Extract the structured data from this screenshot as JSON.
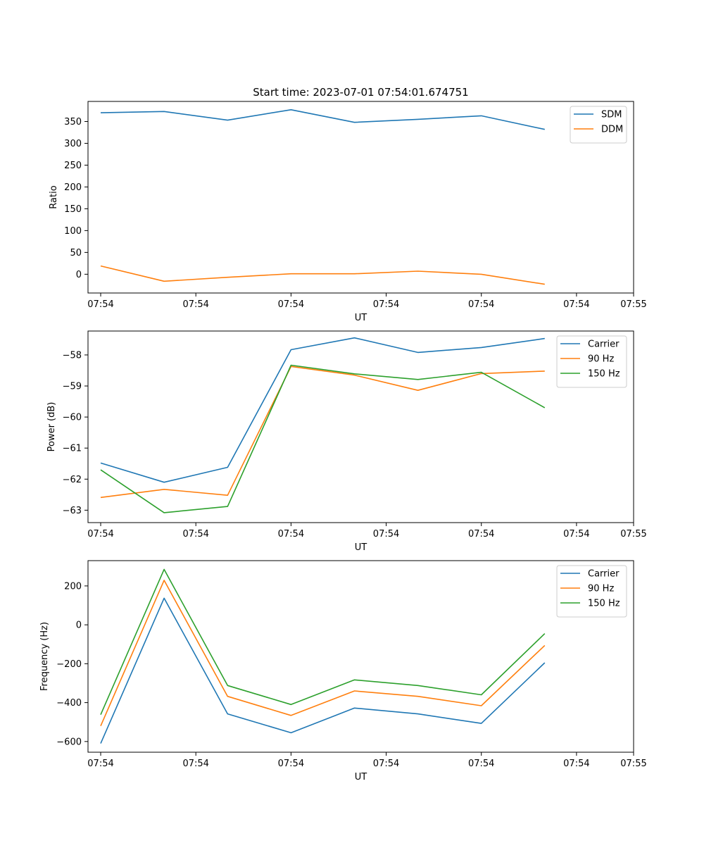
{
  "chart_data": [
    {
      "type": "line",
      "title": "Start time: 2023-07-01 07:54:01.674751",
      "xlabel": "UT",
      "ylabel": "Ratio",
      "x": [
        1,
        2,
        3,
        4,
        5,
        6,
        7,
        8
      ],
      "xlim": [
        0.8,
        9.4
      ],
      "x_ticks": [
        1,
        2.5,
        4,
        5.5,
        7,
        8.5,
        9.4
      ],
      "x_tick_labels": [
        "07:54",
        "07:54",
        "07:54",
        "07:54",
        "07:54",
        "07:54",
        "07:55"
      ],
      "ylim": [
        -43,
        396
      ],
      "y_ticks": [
        0,
        50,
        100,
        150,
        200,
        250,
        300,
        350
      ],
      "legend_position": "top-right",
      "series": [
        {
          "name": "SDM",
          "color": "#1f77b4",
          "values": [
            370,
            373,
            353,
            377,
            348,
            355,
            363,
            332
          ]
        },
        {
          "name": "DDM",
          "color": "#ff7f0e",
          "values": [
            19,
            -16,
            -7,
            1,
            1,
            7,
            0,
            -23
          ]
        }
      ]
    },
    {
      "type": "line",
      "title": "",
      "xlabel": "UT",
      "ylabel": "Power (dB)",
      "x": [
        1,
        2,
        3,
        4,
        5,
        6,
        7,
        8
      ],
      "xlim": [
        0.8,
        9.4
      ],
      "x_ticks": [
        1,
        2.5,
        4,
        5.5,
        7,
        8.5,
        9.4
      ],
      "x_tick_labels": [
        "07:54",
        "07:54",
        "07:54",
        "07:54",
        "07:54",
        "07:54",
        "07:55"
      ],
      "ylim": [
        -63.4,
        -57.23
      ],
      "y_ticks": [
        -63,
        -62,
        -61,
        -60,
        -59,
        -58
      ],
      "legend_position": "top-right",
      "series": [
        {
          "name": "Carrier",
          "color": "#1f77b4",
          "values": [
            -61.48,
            -62.1,
            -61.62,
            -57.83,
            -57.45,
            -57.92,
            -57.76,
            -57.47
          ]
        },
        {
          "name": "90 Hz",
          "color": "#ff7f0e",
          "values": [
            -62.59,
            -62.33,
            -62.52,
            -58.37,
            -58.65,
            -59.14,
            -58.6,
            -58.52
          ]
        },
        {
          "name": "150 Hz",
          "color": "#2ca02c",
          "values": [
            -61.7,
            -63.08,
            -62.88,
            -58.33,
            -58.61,
            -58.79,
            -58.56,
            -59.7
          ]
        }
      ]
    },
    {
      "type": "line",
      "title": "",
      "xlabel": "UT",
      "ylabel": "Frequency (Hz)",
      "x": [
        1,
        2,
        3,
        4,
        5,
        6,
        7,
        8
      ],
      "xlim": [
        0.8,
        9.4
      ],
      "x_ticks": [
        1,
        2.5,
        4,
        5.5,
        7,
        8.5,
        9.4
      ],
      "x_tick_labels": [
        "07:54",
        "07:54",
        "07:54",
        "07:54",
        "07:54",
        "07:54",
        "07:55"
      ],
      "ylim": [
        -655,
        330
      ],
      "y_ticks": [
        -600,
        -400,
        -200,
        0,
        200
      ],
      "legend_position": "top-right",
      "series": [
        {
          "name": "Carrier",
          "color": "#1f77b4",
          "values": [
            -610,
            137,
            -458,
            -555,
            -428,
            -458,
            -507,
            -195
          ]
        },
        {
          "name": "90 Hz",
          "color": "#ff7f0e",
          "values": [
            -520,
            229,
            -368,
            -466,
            -340,
            -368,
            -416,
            -106
          ]
        },
        {
          "name": "150 Hz",
          "color": "#2ca02c",
          "values": [
            -462,
            285,
            -312,
            -410,
            -283,
            -312,
            -360,
            -45
          ]
        }
      ]
    }
  ]
}
